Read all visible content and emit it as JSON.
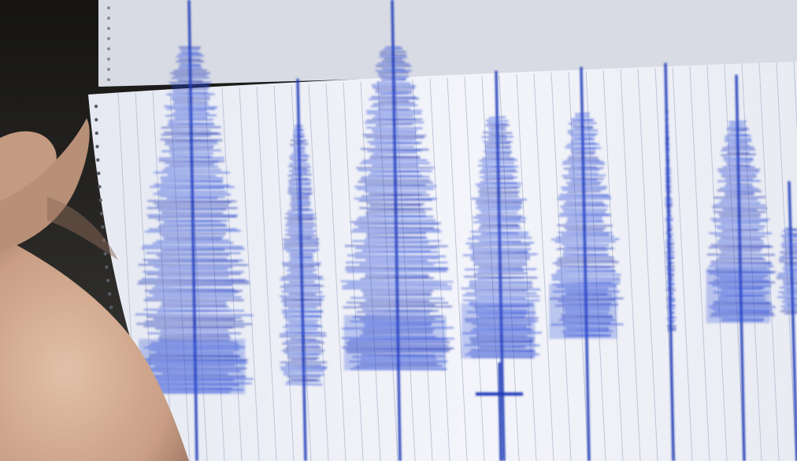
{
  "image": {
    "texts": []
  },
  "colors": {
    "paper": "#eef0f6",
    "grid": "#b9c1d4",
    "ink": "#2f4fd8",
    "ink_dark": "#1f37b5",
    "background": "#2d2c2a",
    "skin": "#d8b39a"
  }
}
